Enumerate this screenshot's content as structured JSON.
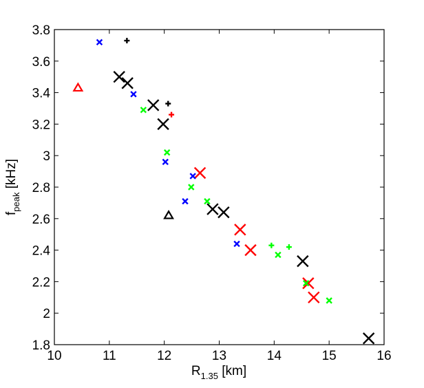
{
  "chart_data": {
    "type": "scatter",
    "title": "",
    "xlabel": {
      "main": "R",
      "sub": "1.35",
      "unit": " [km]"
    },
    "ylabel": {
      "main": "f",
      "sub": "peak",
      "unit": " [kHz]"
    },
    "xlim": [
      10,
      16
    ],
    "ylim": [
      1.8,
      3.8
    ],
    "xticks": [
      10,
      11,
      12,
      13,
      14,
      15,
      16
    ],
    "yticks": [
      1.8,
      2.0,
      2.2,
      2.4,
      2.6,
      2.8,
      3.0,
      3.2,
      3.4,
      3.6,
      3.8
    ],
    "ytick_labels": [
      "1.8",
      "2",
      "2.2",
      "2.4",
      "2.6",
      "2.8",
      "3",
      "3.2",
      "3.4",
      "3.6",
      "3.8"
    ],
    "grid": false,
    "legend": "none",
    "series": [
      {
        "marker": "x-large",
        "color": "#000000",
        "points": [
          [
            11.18,
            3.5
          ],
          [
            11.33,
            3.46
          ],
          [
            11.8,
            3.32
          ],
          [
            11.98,
            3.2
          ],
          [
            12.88,
            2.66
          ],
          [
            13.08,
            2.64
          ],
          [
            14.52,
            2.33
          ],
          [
            15.72,
            1.84
          ]
        ]
      },
      {
        "marker": "x-large",
        "color": "#ff0000",
        "points": [
          [
            12.65,
            2.89
          ],
          [
            13.38,
            2.53
          ],
          [
            13.57,
            2.4
          ],
          [
            14.62,
            2.19
          ],
          [
            14.72,
            2.1
          ]
        ]
      },
      {
        "marker": "x-small",
        "color": "#0000ff",
        "points": [
          [
            10.82,
            3.72
          ],
          [
            11.44,
            3.39
          ],
          [
            12.02,
            2.96
          ],
          [
            12.38,
            2.71
          ],
          [
            12.52,
            2.87
          ],
          [
            13.32,
            2.44
          ]
        ]
      },
      {
        "marker": "x-small",
        "color": "#00ff00",
        "points": [
          [
            11.62,
            3.29
          ],
          [
            12.05,
            3.02
          ],
          [
            12.49,
            2.8
          ],
          [
            12.78,
            2.71
          ],
          [
            14.07,
            2.37
          ],
          [
            14.58,
            2.19
          ],
          [
            15.0,
            2.08
          ]
        ]
      },
      {
        "marker": "plus",
        "color": "#000000",
        "points": [
          [
            11.32,
            3.73
          ],
          [
            12.07,
            3.33
          ]
        ]
      },
      {
        "marker": "plus",
        "color": "#ff0000",
        "points": [
          [
            12.13,
            3.26
          ]
        ]
      },
      {
        "marker": "plus",
        "color": "#00ff00",
        "points": [
          [
            13.95,
            2.43
          ],
          [
            14.27,
            2.42
          ]
        ]
      },
      {
        "marker": "triangle",
        "color": "#ff0000",
        "points": [
          [
            10.43,
            3.43
          ]
        ]
      },
      {
        "marker": "triangle",
        "color": "#000000",
        "points": [
          [
            12.08,
            2.62
          ]
        ]
      }
    ]
  }
}
